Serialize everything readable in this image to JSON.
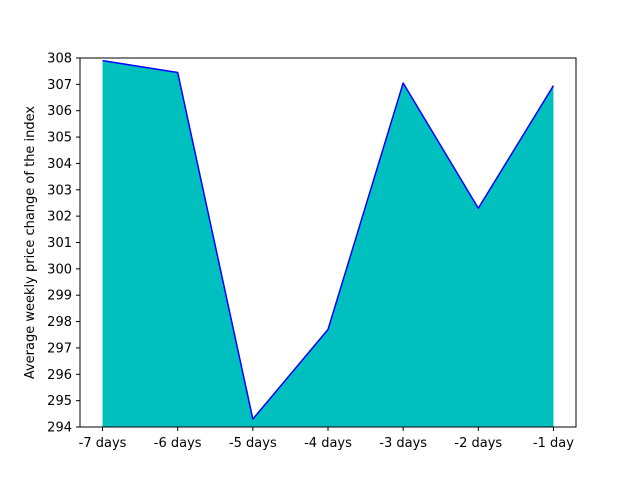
{
  "chart_data": {
    "type": "area",
    "title": "",
    "xlabel": "",
    "ylabel": "Average weekly price change of the index",
    "categories": [
      "-7 days",
      "-6 days",
      "-5 days",
      "-4 days",
      "-3 days",
      "-2 days",
      "-1 day"
    ],
    "values": [
      307.9,
      307.45,
      294.3,
      297.7,
      307.05,
      302.3,
      306.95
    ],
    "ylim": [
      294,
      308
    ],
    "yticks": [
      294,
      295,
      296,
      297,
      298,
      299,
      300,
      301,
      302,
      303,
      304,
      305,
      306,
      307,
      308
    ],
    "grid": false,
    "colors": {
      "fill": "#00bfbf",
      "line": "#0000ff",
      "frame": "#000000"
    }
  }
}
